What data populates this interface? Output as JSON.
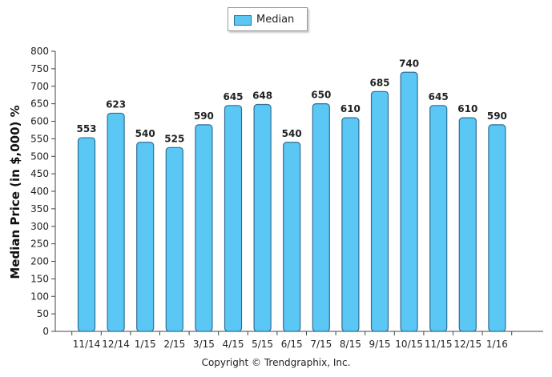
{
  "chart_data": {
    "type": "bar",
    "categories": [
      "11/14",
      "12/14",
      "1/15",
      "2/15",
      "3/15",
      "4/15",
      "5/15",
      "6/15",
      "7/15",
      "8/15",
      "9/15",
      "10/15",
      "11/15",
      "12/15",
      "1/16"
    ],
    "series": [
      {
        "name": "Median",
        "values": [
          553,
          623,
          540,
          525,
          590,
          645,
          648,
          540,
          650,
          610,
          685,
          740,
          645,
          610,
          590
        ]
      }
    ],
    "ylabel": "Median Price (in $,000) %",
    "ylim": [
      0,
      800
    ],
    "yticks": [
      0,
      50,
      100,
      150,
      200,
      250,
      300,
      350,
      400,
      450,
      500,
      550,
      600,
      650,
      700,
      750,
      800
    ],
    "legend_position": "top-center",
    "grid": false,
    "bar_color": "#5bc7f5",
    "bar_edge_color": "#2f6f95",
    "footer": "Copyright © Trendgraphix, Inc."
  }
}
